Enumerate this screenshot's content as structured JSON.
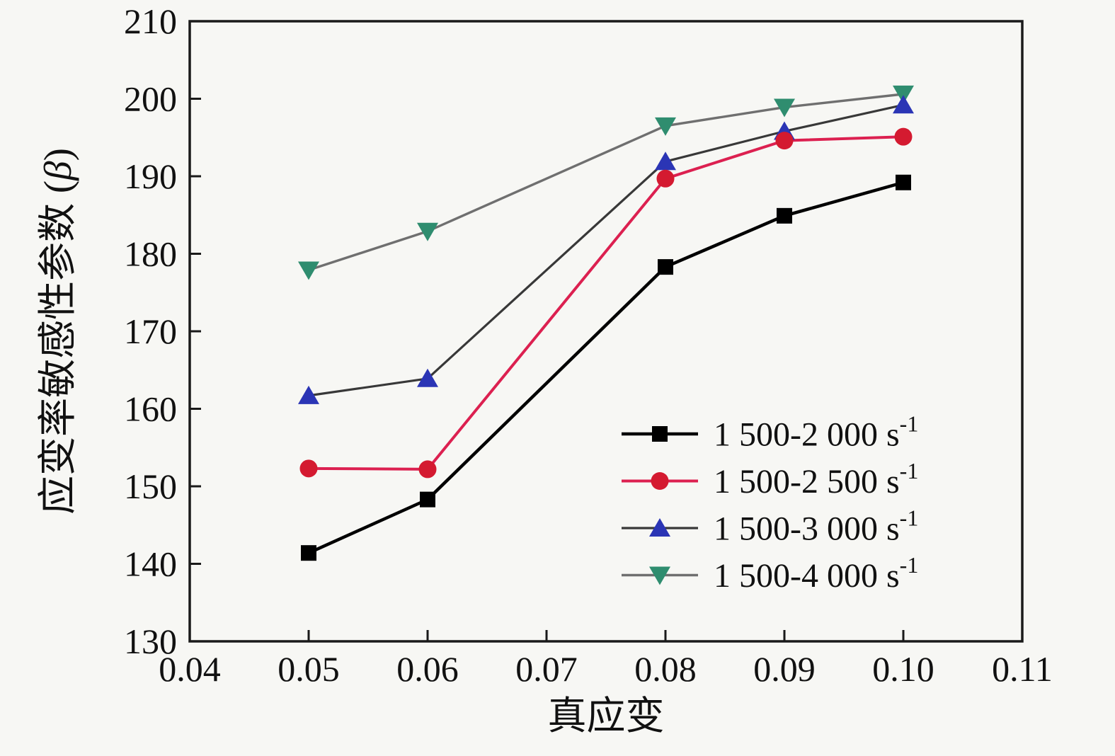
{
  "figure": {
    "background": "#f7f7f4",
    "frame_color": "#1a1a1a",
    "tick_color": "#1a1a1a"
  },
  "chart_data": {
    "type": "line",
    "x": [
      0.05,
      0.06,
      0.08,
      0.09,
      0.1
    ],
    "series": [
      {
        "name": "1 500-2 000 s⁻¹",
        "label": "1 500-2 000 s",
        "label_exponent": "-1",
        "marker": "square",
        "marker_color": "#000000",
        "line_color": "#000000",
        "line_width": 4.5,
        "values": [
          141.4,
          148.3,
          178.3,
          184.9,
          189.2
        ]
      },
      {
        "name": "1 500-2 500 s⁻¹",
        "label": "1 500-2 500 s",
        "label_exponent": "-1",
        "marker": "circle",
        "marker_color": "#d41a30",
        "line_color": "#dc2050",
        "line_width": 4,
        "values": [
          152.3,
          152.2,
          189.7,
          194.6,
          195.1
        ]
      },
      {
        "name": "1 500-3 000 s⁻¹",
        "label": "1 500-3 000 s",
        "label_exponent": "-1",
        "marker": "triangle-up",
        "marker_color": "#2b35b5",
        "line_color": "#383838",
        "line_width": 3.2,
        "values": [
          161.7,
          163.9,
          191.9,
          195.8,
          199.2
        ]
      },
      {
        "name": "1 500-4 000 s⁻¹",
        "label": "1 500-4 000 s",
        "label_exponent": "-1",
        "marker": "triangle-down",
        "marker_color": "#2f8d6f",
        "line_color": "#6f6f6f",
        "line_width": 3.4,
        "values": [
          177.9,
          182.9,
          196.5,
          198.9,
          200.6
        ]
      }
    ],
    "xlabel": "真应变",
    "ylabel": "应变率敏感性参数",
    "ylabel_symbol": "β",
    "xlim": [
      0.04,
      0.11
    ],
    "ylim": [
      130,
      210
    ],
    "x_tick_labels": [
      "0.04",
      "0.05",
      "0.06",
      "0.07",
      "0.08",
      "0.09",
      "0.10",
      "0.11"
    ],
    "y_tick_labels": [
      "130",
      "140",
      "150",
      "160",
      "170",
      "180",
      "190",
      "200",
      "210"
    ],
    "grid": false,
    "legend_position": "inside lower-right"
  }
}
